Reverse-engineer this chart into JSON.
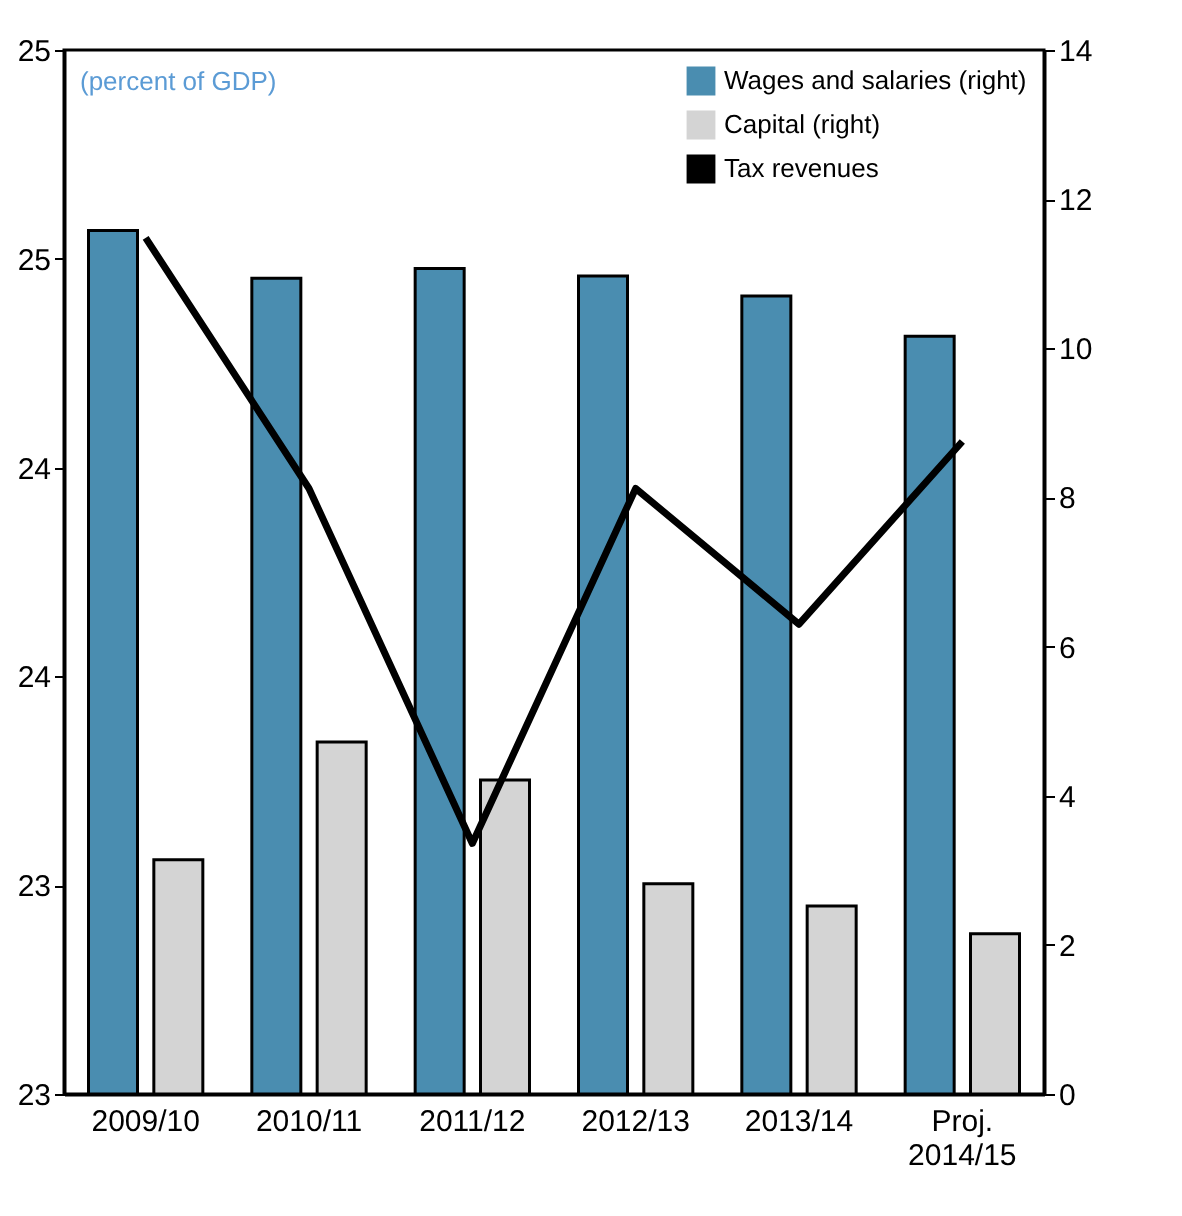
{
  "chart_data": {
    "type": "bar",
    "categories": [
      "2009/10",
      "2010/11",
      "2011/12",
      "2012/13",
      "2013/14",
      "Proj. 2014/15"
    ],
    "series": [
      {
        "name": "Wages and salaries (right)",
        "color": "#4a8db0",
        "axis": "y2",
        "values": [
          11.58,
          10.94,
          11.07,
          10.97,
          10.7,
          10.16
        ]
      },
      {
        "name": "Capital (right)",
        "color": "#d4d4d4",
        "axis": "y2",
        "values": [
          3.14,
          4.72,
          4.21,
          2.82,
          2.52,
          2.15
        ]
      },
      {
        "name": "Tax revenues",
        "type": "line",
        "color": "#000000",
        "values": [
          24.64,
          24.16,
          23.48,
          24.16,
          23.9,
          24.25
        ]
      }
    ],
    "ylim": [
      23,
      25
    ],
    "yticks": [
      23,
      {
        "value": 23.4,
        "label": "23"
      },
      {
        "value": 23.8,
        "label": "24"
      },
      {
        "value": 24.2,
        "label": "24"
      },
      {
        "value": 24.6,
        "label": "25"
      },
      25
    ],
    "y2lim": [
      0,
      14
    ],
    "y2ticks": [
      0,
      2,
      4,
      6,
      8,
      10,
      12,
      14
    ],
    "annotations": [
      "(percent of GDP)"
    ],
    "legend": "top right",
    "grid": false
  }
}
